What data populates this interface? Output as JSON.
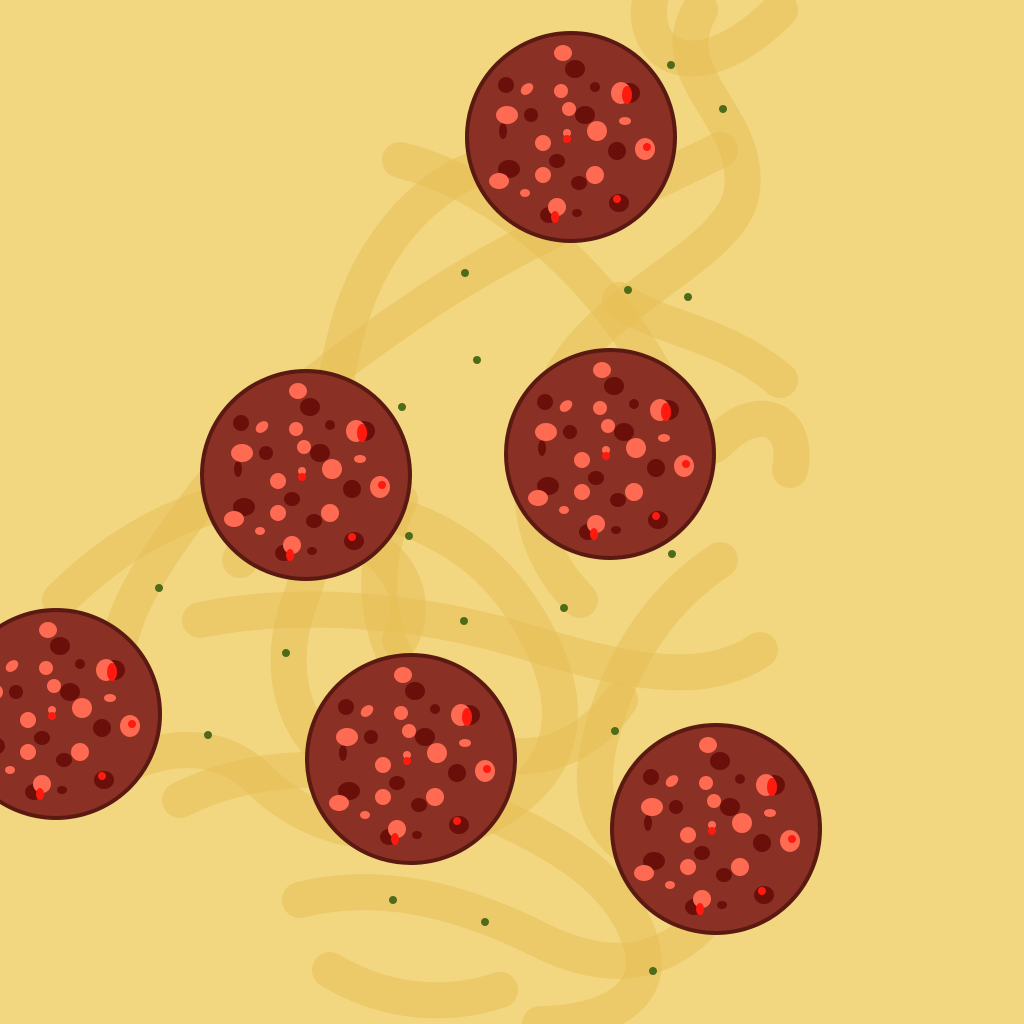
{
  "scene": {
    "subject": "pepperoni-pizza-close-up",
    "colors": {
      "crust": "#f2d680",
      "cheese_swirl": "#e8bf55",
      "pepperoni_base": "#8b3024",
      "pepperoni_rim": "#5a1a12",
      "fat_spots": "#ff6a52",
      "dark_spots": "#6a0f0a",
      "grease_highlight": "#ff1a10",
      "herb": "#4e6b1a"
    },
    "pepperoni_count": 6,
    "herb_count": 22
  }
}
